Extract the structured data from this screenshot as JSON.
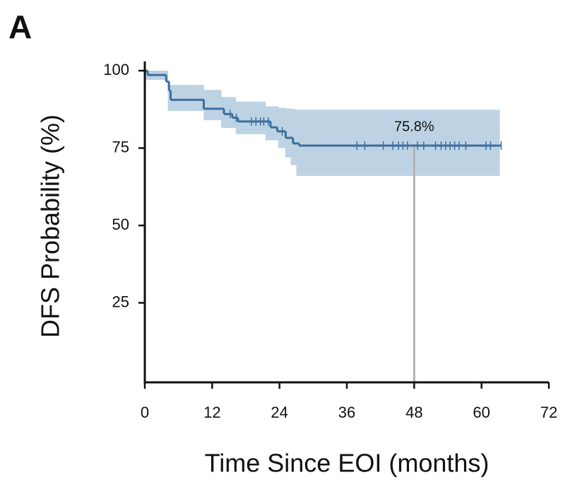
{
  "panel_label": "A",
  "chart_data": {
    "type": "km",
    "xlabel": "Time Since EOI (months)",
    "ylabel": "DFS Probability (%)",
    "xlim": [
      0,
      72
    ],
    "xticks": [
      0,
      12,
      24,
      36,
      48,
      60,
      72
    ],
    "ylim": [
      0,
      103
    ],
    "yticks": [
      25,
      50,
      75,
      100
    ],
    "color": "#3b6e9e",
    "band_color": "#bdd3e3",
    "curve": {
      "x": [
        0,
        0.5,
        3.8,
        4.3,
        4.6,
        10.5,
        14.1,
        15.6,
        16.6,
        22.4,
        23.6,
        25.1,
        26.4,
        27.5,
        63.5
      ],
      "y": [
        100,
        98.6,
        96.5,
        93.6,
        90.6,
        87.7,
        86.0,
        84.8,
        83.6,
        81.7,
        80.4,
        78.3,
        76.5,
        75.8,
        75.8
      ]
    },
    "band": {
      "x": [
        0,
        4.1,
        10.5,
        13.6,
        16.2,
        21.5,
        23.8,
        25.0,
        26.0,
        27.0,
        63.2
      ],
      "upper": [
        100,
        95.4,
        93.8,
        91.5,
        90.0,
        88.5,
        88.0,
        87.8,
        87.6,
        87.4,
        87.4
      ],
      "lower": [
        97,
        87,
        84,
        81.5,
        79.5,
        77.5,
        75,
        72,
        69.5,
        66,
        66
      ]
    },
    "censored": {
      "x": [
        15.2,
        16.3,
        19.0,
        19.8,
        20.6,
        21.2,
        22.0,
        24.5,
        37.8,
        39.2,
        42.5,
        44.2,
        45.2,
        46.0,
        46.8,
        48.6,
        49.7,
        51.8,
        52.8,
        53.6,
        54.4,
        55.2,
        56.0,
        57.2,
        60.8,
        61.6,
        63.5
      ],
      "y": [
        86.0,
        84.8,
        83.6,
        83.6,
        83.6,
        83.6,
        83.6,
        80.4,
        75.8,
        75.8,
        75.8,
        75.8,
        75.8,
        75.8,
        75.8,
        75.8,
        75.8,
        75.8,
        75.8,
        75.8,
        75.8,
        75.8,
        75.8,
        75.8,
        75.8,
        75.8,
        75.8
      ]
    },
    "annotation": {
      "x": 48,
      "value": 75.8,
      "label": "75.8%"
    }
  }
}
